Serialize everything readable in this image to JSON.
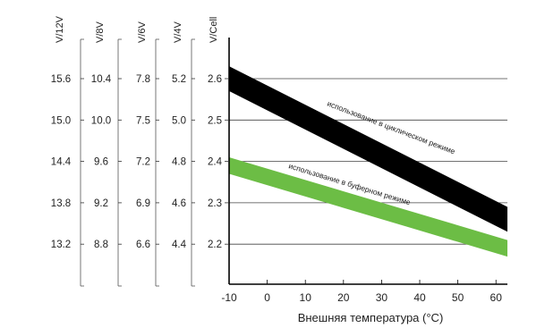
{
  "chart_data": {
    "type": "line",
    "title": "",
    "xlabel": "Внешняя температура  (°C)",
    "x_ticks": [
      -10,
      0,
      10,
      20,
      30,
      40,
      50,
      60
    ],
    "xlim": [
      -10,
      63
    ],
    "ylim": [
      2.0,
      2.8
    ],
    "grid": "horizontal",
    "voltage_axes": [
      {
        "label": "V/12V",
        "ticks": [
          "15.6",
          "15.0",
          "14.4",
          "13.8",
          "13.2"
        ]
      },
      {
        "label": "V/8V",
        "ticks": [
          "10.4",
          "10.0",
          "9.6",
          "9.2",
          "8.8"
        ]
      },
      {
        "label": "V/6V",
        "ticks": [
          "7.8",
          "7.5",
          "7.2",
          "6.9",
          "6.6"
        ]
      },
      {
        "label": "V/4V",
        "ticks": [
          "5.2",
          "5.0",
          "4.8",
          "4.6",
          "4.4"
        ]
      },
      {
        "label": "V/Cell",
        "ticks": [
          "2.6",
          "2.5",
          "2.4",
          "2.3",
          "2.2"
        ]
      }
    ],
    "cell_ticks": [
      2.6,
      2.5,
      2.4,
      2.3,
      2.2
    ],
    "series": [
      {
        "name": "использование в циклическом режиме",
        "color": "#000000",
        "x": [
          -10,
          63
        ],
        "y_upper": [
          2.63,
          2.29
        ],
        "y_lower": [
          2.57,
          2.23
        ]
      },
      {
        "name": "использование в буферном режиме",
        "color": "#6cbd45",
        "x": [
          -10,
          63
        ],
        "y_upper": [
          2.41,
          2.21
        ],
        "y_lower": [
          2.37,
          2.17
        ]
      }
    ]
  }
}
